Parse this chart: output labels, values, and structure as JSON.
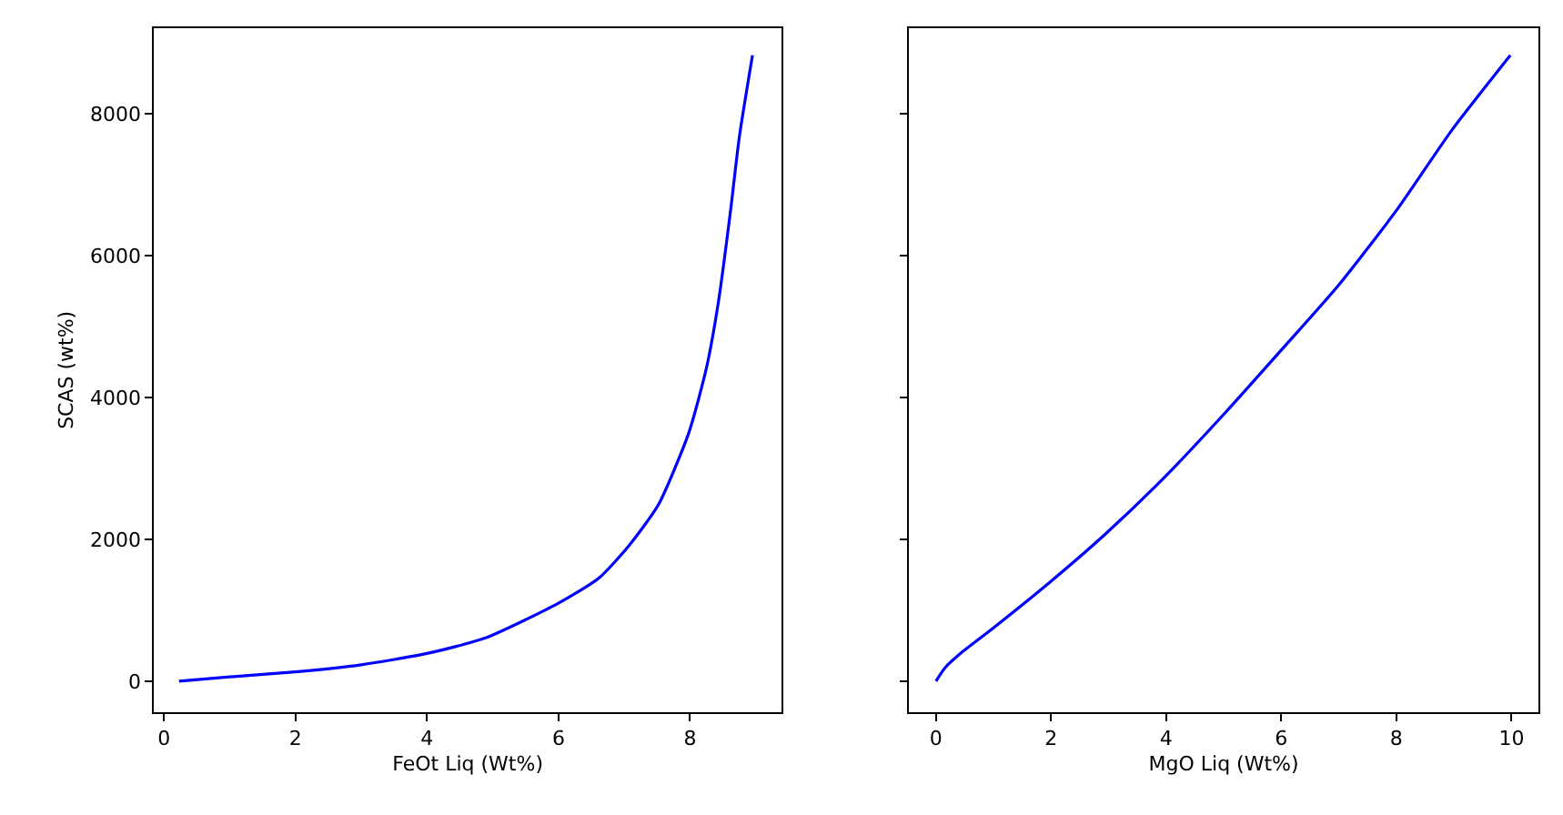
{
  "chart_data": [
    {
      "type": "line",
      "xlabel": "FeOt Liq (Wt%)",
      "ylabel": "SCAS (wt%)",
      "xlim": [
        -0.15,
        9.39
      ],
      "ylim": [
        -434,
        9212
      ],
      "xticks": [
        0,
        2,
        4,
        6,
        8
      ],
      "yticks": [
        0,
        2000,
        4000,
        6000,
        8000
      ],
      "series": [
        {
          "color": "#0000ff",
          "x": [
            0.23,
            1,
            2,
            3,
            4,
            4.89,
            5.98,
            6.61,
            7.07,
            7.52,
            7.98,
            8.25,
            8.43,
            8.61,
            8.75,
            8.95
          ],
          "values": [
            0,
            60,
            130,
            230,
            390,
            610,
            1090,
            1450,
            1910,
            2490,
            3500,
            4420,
            5340,
            6590,
            7680,
            8830
          ]
        }
      ]
    },
    {
      "type": "line",
      "xlabel": "MgO Liq (Wt%)",
      "tick_labels": "x",
      "xlim": [
        -0.47,
        10.47
      ],
      "ylim": [
        -434,
        9212
      ],
      "xticks": [
        0,
        2,
        4,
        6,
        8,
        10
      ],
      "yticks": [
        0,
        2000,
        4000,
        6000,
        8000
      ],
      "series": [
        {
          "color": "#0000ff",
          "x": [
            0,
            0.16,
            0.47,
            0.98,
            2.0,
            2.95,
            4.0,
            5.03,
            6.0,
            7.0,
            8.0,
            8.96,
            9.98
          ],
          "values": [
            0,
            190,
            420,
            740,
            1410,
            2080,
            2900,
            3790,
            4670,
            5590,
            6640,
            7770,
            8830
          ]
        }
      ]
    }
  ]
}
